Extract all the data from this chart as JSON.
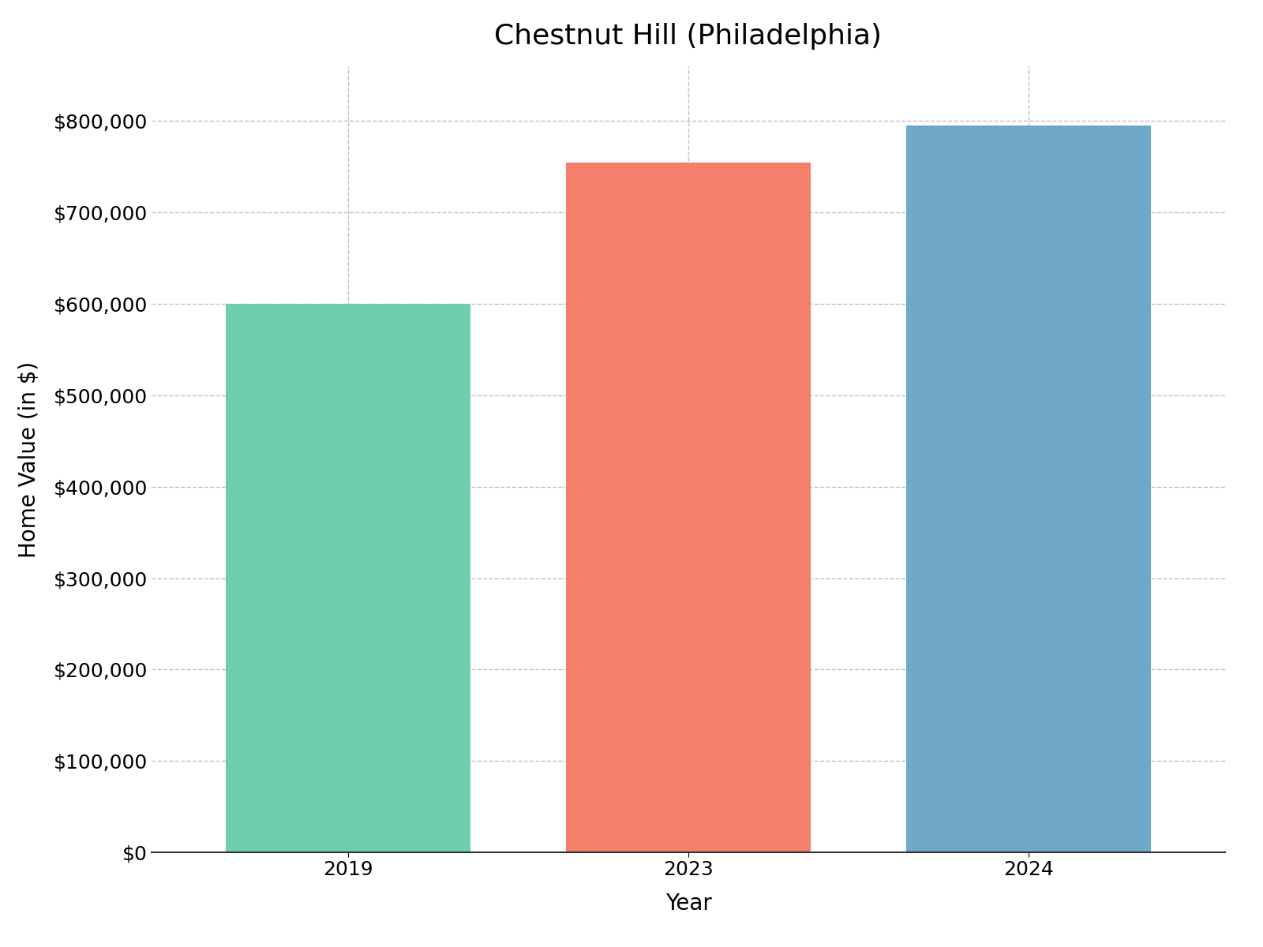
{
  "title": "Chestnut Hill (Philadelphia)",
  "categories": [
    "2019",
    "2023",
    "2024"
  ],
  "values": [
    600000,
    755000,
    795000
  ],
  "bar_colors": [
    "#6ecfb0",
    "#f47f6b",
    "#6fa8c8"
  ],
  "xlabel": "Year",
  "ylabel": "Home Value (in $)",
  "ylim": [
    0,
    860000
  ],
  "yticks": [
    0,
    100000,
    200000,
    300000,
    400000,
    500000,
    600000,
    700000,
    800000
  ],
  "background_color": "#ffffff",
  "grid_color": "#c0c0c0",
  "title_fontsize": 26,
  "axis_label_fontsize": 20,
  "tick_fontsize": 18,
  "bar_width": 0.72
}
